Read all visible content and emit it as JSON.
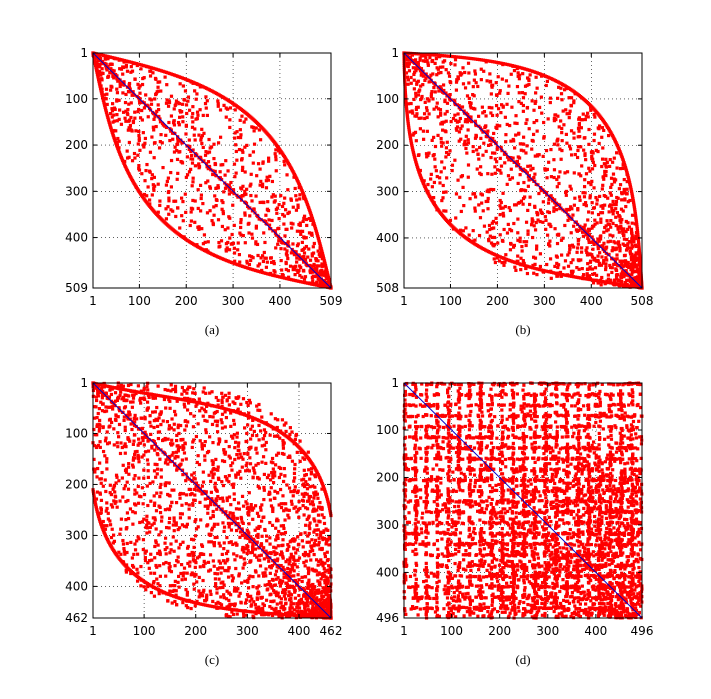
{
  "figure": {
    "marker_color": "#ff0000",
    "diagonal_color": "#0000cc",
    "grid": true,
    "grid_style": "dotted"
  },
  "chart_data": [
    {
      "type": "scatter",
      "caption": "(a)",
      "n": 509,
      "xlim": [
        1,
        509
      ],
      "ylim": [
        1,
        509
      ],
      "y_reversed": true,
      "xticks": [
        "1",
        "100",
        "200",
        "300",
        "400",
        "509"
      ],
      "yticks": [
        "1",
        "100",
        "200",
        "300",
        "400",
        "509"
      ],
      "pattern": "narrow symmetric band around diagonal (lens shape)",
      "series": [
        {
          "values": "sparse points within lens around main diagonal"
        }
      ]
    },
    {
      "type": "scatter",
      "caption": "(b)",
      "n": 508,
      "xlim": [
        1,
        508
      ],
      "ylim": [
        1,
        508
      ],
      "y_reversed": true,
      "xticks": [
        "1",
        "100",
        "200",
        "300",
        "400",
        "508"
      ],
      "yticks": [
        "1",
        "100",
        "200",
        "300",
        "400",
        "508"
      ],
      "pattern": "wider lens, denser toward bottom-right",
      "series": [
        {
          "values": "points within wide lens around main diagonal"
        }
      ]
    },
    {
      "type": "scatter",
      "caption": "(c)",
      "n": 462,
      "xlim": [
        1,
        462
      ],
      "ylim": [
        1,
        462
      ],
      "y_reversed": true,
      "xticks": [
        "1",
        "100",
        "200",
        "300",
        "400",
        "462"
      ],
      "yticks": [
        "1",
        "100",
        "200",
        "300",
        "400",
        "462"
      ],
      "pattern": "nearly full lens, very dense in lower-right region",
      "series": [
        {
          "values": "dense points within wide lens"
        }
      ]
    },
    {
      "type": "scatter",
      "caption": "(d)",
      "n": 496,
      "xlim": [
        1,
        496
      ],
      "ylim": [
        1,
        496
      ],
      "y_reversed": true,
      "xticks": [
        "1",
        "100",
        "200",
        "300",
        "400",
        "496"
      ],
      "yticks": [
        "1",
        "100",
        "200",
        "300",
        "400",
        "496"
      ],
      "pattern": "block/banded structure filling nearly whole matrix",
      "series": [
        {
          "values": "regular banded stripes filling matrix"
        }
      ]
    }
  ]
}
